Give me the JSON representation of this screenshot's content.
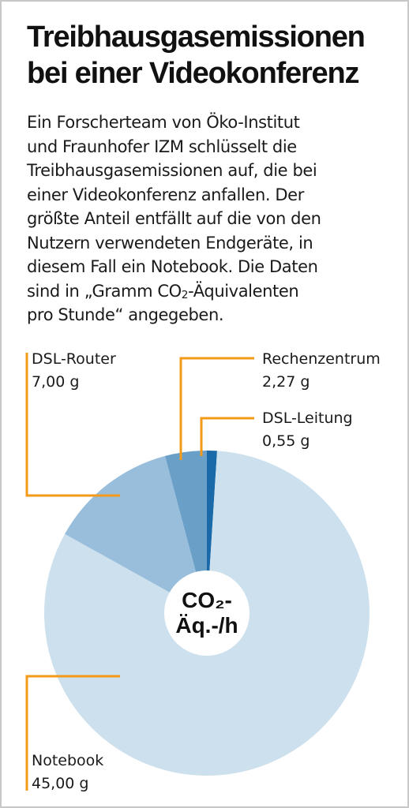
{
  "title_lines": [
    "Treibhausgasemissionen",
    "bei einer Videokonferenz"
  ],
  "intro": {
    "lines": [
      "Ein Forscherteam von Öko-Institut",
      "und Fraunhofer IZM schlüsselt die",
      "Treibhausgasemissionen auf, die bei",
      "einer Videokonferenz anfallen. Der",
      "größte Anteil entfällt auf die von den",
      "Nutzern verwendeten Endgeräte, in",
      "diesem Fall ein Notebook. Die Daten"
    ],
    "last_line_pre": "sind in „Gramm CO",
    "last_line_sub": "2",
    "last_line_post": "-Äquivalenten",
    "final_line": "pro Stunde“ angegeben."
  },
  "chart_data": {
    "type": "pie",
    "donut": true,
    "center_label_line1": "CO₂-",
    "center_label_line2": "Äq.-/h",
    "slices": [
      {
        "name": "DSL-Leitung",
        "value": 0.55,
        "display": "0,55 g",
        "color": "#1a6aaa"
      },
      {
        "name": "Notebook",
        "value": 45.0,
        "display": "45,00 g",
        "color": "#cde0ee"
      },
      {
        "name": "DSL-Router",
        "value": 7.0,
        "display": "7,00 g",
        "color": "#98bedb"
      },
      {
        "name": "Rechenzentrum",
        "value": 2.27,
        "display": "2,27 g",
        "color": "#6a9fc8"
      }
    ],
    "leader_color": "#f39a18"
  }
}
